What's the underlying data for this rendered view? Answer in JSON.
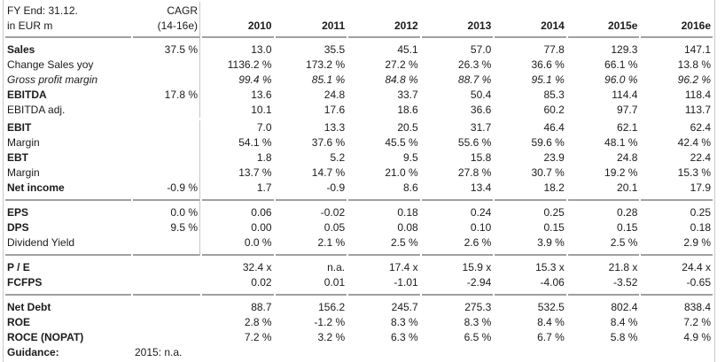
{
  "header": {
    "row1_label": "FY End: 31.12.",
    "row2_label": "in EUR m",
    "cagr_line1": "CAGR",
    "cagr_line2": "(14-16e)",
    "years": [
      "2010",
      "2011",
      "2012",
      "2013",
      "2014",
      "2015e",
      "2016e"
    ]
  },
  "sections": [
    {
      "name": "income-statement",
      "cagr_divider": true,
      "rows": [
        {
          "label": "Sales",
          "bold": true,
          "cagr": "37.5 %",
          "values": [
            "13.0",
            "35.5",
            "45.1",
            "57.0",
            "77.8",
            "129.3",
            "147.1"
          ]
        },
        {
          "label": "Change Sales yoy",
          "values": [
            "1136.2 %",
            "173.2 %",
            "27.2 %",
            "26.3 %",
            "36.6 %",
            "66.1 %",
            "13.8 %"
          ]
        },
        {
          "label": "Gross profit margin",
          "italic": true,
          "values": [
            "99.4 %",
            "85.1 %",
            "84.8 %",
            "88.7 %",
            "95.1 %",
            "96.0 %",
            "96.2 %"
          ]
        },
        {
          "label": "EBITDA",
          "bold": true,
          "cagr": "17.8 %",
          "values": [
            "13.6",
            "24.8",
            "33.7",
            "50.4",
            "85.3",
            "114.4",
            "118.4"
          ]
        },
        {
          "label": "EBITDA adj.",
          "values": [
            "10.1",
            "17.6",
            "18.6",
            "36.6",
            "60.2",
            "97.7",
            "113.7"
          ]
        },
        {
          "label": "EBIT",
          "bold": true,
          "gap_before": true,
          "values": [
            "7.0",
            "13.3",
            "20.5",
            "31.7",
            "46.4",
            "62.1",
            "62.4"
          ]
        },
        {
          "label": "Margin",
          "values": [
            "54.1 %",
            "37.6 %",
            "45.5 %",
            "55.6 %",
            "59.6 %",
            "48.1 %",
            "42.4 %"
          ]
        },
        {
          "label": "EBT",
          "bold": true,
          "values": [
            "1.8",
            "5.2",
            "9.5",
            "15.8",
            "23.9",
            "24.8",
            "22.4"
          ]
        },
        {
          "label": "Margin",
          "values": [
            "13.7 %",
            "14.7 %",
            "21.0 %",
            "27.8 %",
            "30.7 %",
            "19.2 %",
            "15.3 %"
          ]
        },
        {
          "label": "Net income",
          "bold": true,
          "cagr": "-0.9 %",
          "values": [
            "1.7",
            "-0.9",
            "8.6",
            "13.4",
            "18.2",
            "20.1",
            "17.9"
          ]
        }
      ]
    },
    {
      "name": "per-share",
      "cagr_divider": true,
      "rows": [
        {
          "label": "EPS",
          "bold": true,
          "cagr": "0.0 %",
          "values": [
            "0.06",
            "-0.02",
            "0.18",
            "0.24",
            "0.25",
            "0.28",
            "0.25"
          ]
        },
        {
          "label": "DPS",
          "bold": true,
          "cagr": "9.5 %",
          "values": [
            "0.00",
            "0.05",
            "0.08",
            "0.10",
            "0.15",
            "0.15",
            "0.18"
          ]
        },
        {
          "label": "Dividend Yield",
          "values": [
            "0.0 %",
            "2.1 %",
            "2.5 %",
            "2.6 %",
            "3.9 %",
            "2.5 %",
            "2.9 %"
          ]
        }
      ]
    },
    {
      "name": "valuation",
      "cagr_divider": false,
      "rows": [
        {
          "label": "P / E",
          "bold": true,
          "values": [
            "32.4 x",
            "n.a.",
            "17.4 x",
            "15.9 x",
            "15.3 x",
            "21.8 x",
            "24.4 x"
          ]
        },
        {
          "label": "FCFPS",
          "bold": true,
          "values": [
            "0.02",
            "0.01",
            "-1.01",
            "-2.94",
            "-4.06",
            "-3.52",
            "-0.65"
          ]
        }
      ]
    },
    {
      "name": "debt-and-returns",
      "cagr_divider": false,
      "rows": [
        {
          "label": "Net Debt",
          "bold": true,
          "values": [
            "88.7",
            "156.2",
            "245.7",
            "275.3",
            "532.5",
            "802.4",
            "838.4"
          ]
        },
        {
          "label": "ROE",
          "bold": true,
          "values": [
            "2.8 %",
            "-1.2 %",
            "8.3 %",
            "8.3 %",
            "8.4 %",
            "8.4 %",
            "7.2 %"
          ]
        },
        {
          "label": "ROCE (NOPAT)",
          "bold": true,
          "values": [
            "7.2 %",
            "3.2 %",
            "6.3 %",
            "6.5 %",
            "6.7 %",
            "5.8 %",
            "4.9 %"
          ]
        },
        {
          "label": "Guidance:",
          "bold": true,
          "wide_value": "2015: n.a."
        }
      ]
    }
  ],
  "colors": {
    "background": "#ffffff",
    "text": "#1b1b1b",
    "section_rule": "#a0a0a0",
    "column_divider": "#c6c6c6",
    "edge_line": "#c9c9c9"
  }
}
